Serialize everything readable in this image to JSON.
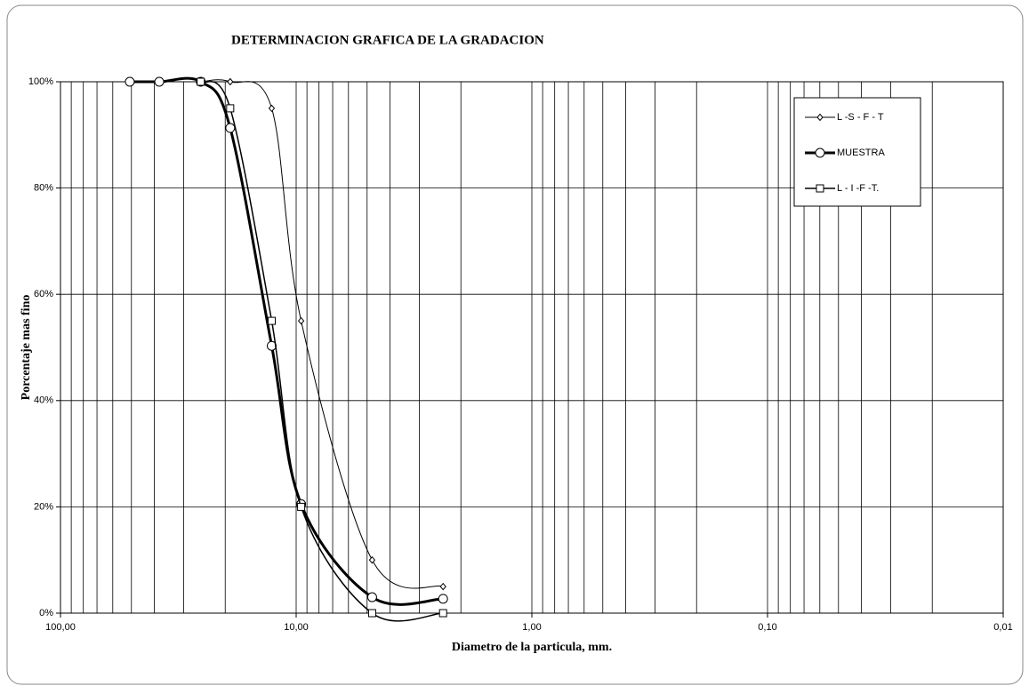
{
  "chart_data": {
    "type": "line",
    "title": "DETERMINACION GRAFICA DE LA GRADACION",
    "xlabel": "Diametro de la particula,  mm.",
    "ylabel": "Porcentaje mas fino",
    "xscale": "log",
    "xlim": [
      100,
      0.01
    ],
    "ylim": [
      0,
      100
    ],
    "xticks": [
      {
        "value": 100,
        "label": "100,00"
      },
      {
        "value": 10,
        "label": "10,00"
      },
      {
        "value": 1,
        "label": "1,00"
      },
      {
        "value": 0.1,
        "label": "0,10"
      },
      {
        "value": 0.01,
        "label": "0,01"
      }
    ],
    "yticks": [
      {
        "value": 0,
        "label": "0%"
      },
      {
        "value": 20,
        "label": "20%"
      },
      {
        "value": 40,
        "label": "40%"
      },
      {
        "value": 60,
        "label": "60%"
      },
      {
        "value": 80,
        "label": "80%"
      },
      {
        "value": 100,
        "label": "100%"
      }
    ],
    "grid": true,
    "legend": "upper right",
    "series": [
      {
        "name": "L -S - F - T",
        "color": "#000000",
        "marker": "diamond",
        "line_width": 1,
        "x": [
          25.4,
          19.05,
          12.7,
          9.525,
          4.76,
          2.38
        ],
        "values": [
          100,
          100,
          95,
          55,
          10,
          5
        ]
      },
      {
        "name": "MUESTRA",
        "color": "#000000",
        "marker": "circle",
        "line_width": 3,
        "x": [
          50.8,
          38.1,
          25.4,
          19.05,
          12.7,
          9.525,
          4.76,
          2.38
        ],
        "values": [
          100,
          100,
          100,
          91.3,
          50.3,
          20.5,
          3,
          2.7
        ]
      },
      {
        "name": "L - I -F -T.",
        "color": "#000000",
        "marker": "square",
        "line_width": 1.5,
        "x": [
          25.4,
          19.05,
          12.7,
          9.525,
          4.76,
          2.38
        ],
        "values": [
          100,
          95,
          55,
          20,
          0,
          0
        ]
      }
    ]
  }
}
